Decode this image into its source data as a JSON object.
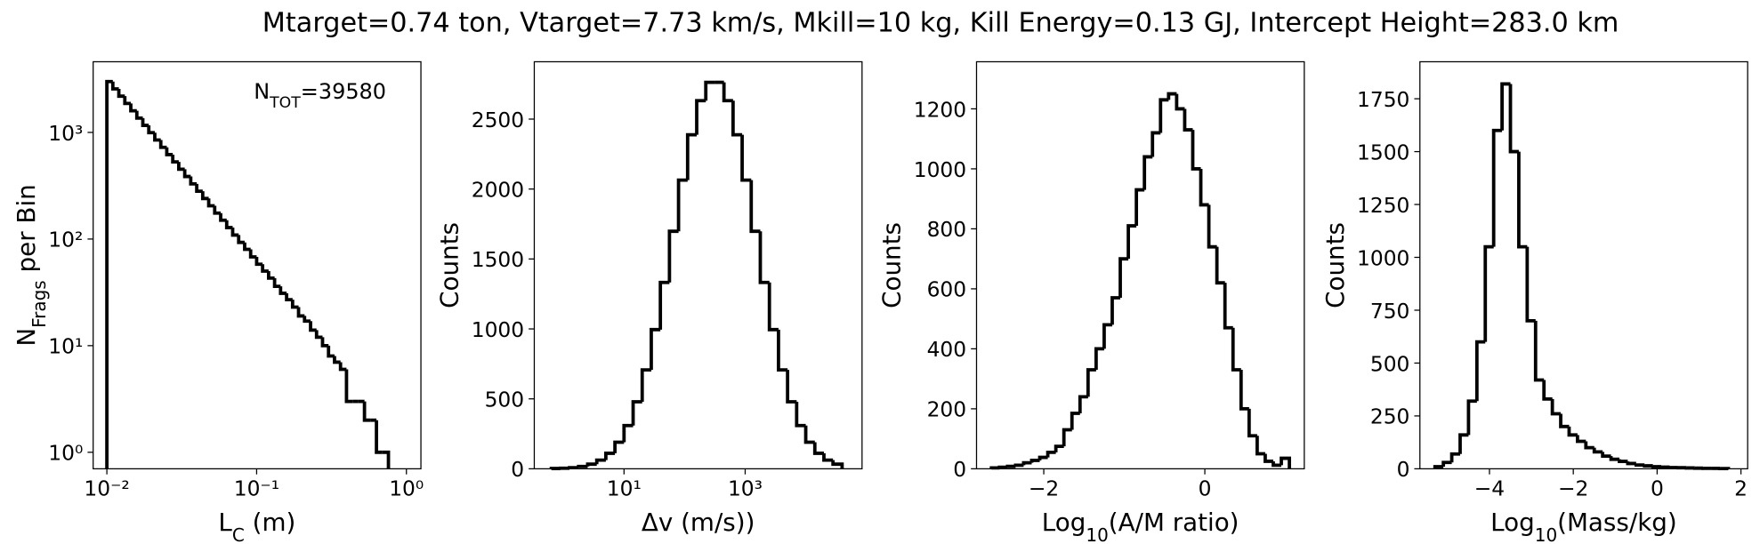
{
  "figure_title": "Mtarget=0.74 ton, Vtarget=7.73 km/s, Mkill=10 kg, Kill Energy=0.13 GJ, Intercept Height=283.0 km",
  "chart_data": [
    {
      "type": "histogram",
      "color": "#000000",
      "xscale": "log",
      "yscale": "log",
      "xlabel": [
        "L",
        "C",
        " (m)"
      ],
      "ylabel": [
        "N",
        "Frags",
        " per Bin"
      ],
      "annotation": [
        "N",
        "TOT",
        "=39580"
      ],
      "xlim": [
        0.0081,
        1.25
      ],
      "ylim": [
        0.7,
        4600
      ],
      "xticks": [
        {
          "value": 0.01,
          "label": "10⁻²"
        },
        {
          "value": 0.1,
          "label": "10⁻¹"
        },
        {
          "value": 1,
          "label": "10⁰"
        }
      ],
      "yticks": [
        {
          "value": 1,
          "label": "10⁰"
        },
        {
          "value": 10,
          "label": "10¹"
        },
        {
          "value": 100,
          "label": "10²"
        },
        {
          "value": 1000,
          "label": "10³"
        }
      ],
      "bins": [
        0.01,
        0.01096,
        0.01202,
        0.01318,
        0.01445,
        0.01585,
        0.01738,
        0.01905,
        0.02089,
        0.02291,
        0.02512,
        0.02754,
        0.0302,
        0.03311,
        0.03631,
        0.03981,
        0.04365,
        0.04786,
        0.05248,
        0.05754,
        0.0631,
        0.06918,
        0.07586,
        0.08318,
        0.0912,
        0.1,
        0.1096,
        0.1202,
        0.1318,
        0.1445,
        0.1585,
        0.1738,
        0.1905,
        0.2089,
        0.2291,
        0.2512,
        0.2754,
        0.302,
        0.3311,
        0.3631,
        0.3981,
        0.4365,
        0.4786,
        0.5248,
        0.5754,
        0.631,
        0.6918,
        0.7586
      ],
      "values": [
        3000,
        2562,
        2188,
        1869,
        1596,
        1363,
        1164,
        994,
        849,
        725,
        619,
        529,
        452,
        386,
        329,
        281,
        240,
        205,
        175,
        150,
        128,
        109,
        93,
        80,
        68,
        58,
        50,
        43,
        36,
        31,
        27,
        23,
        19,
        17,
        14,
        12,
        10,
        8,
        7,
        6,
        3,
        3,
        3,
        2,
        2,
        1,
        1
      ]
    },
    {
      "type": "histogram",
      "color": "#000000",
      "xscale": "log",
      "yscale": "linear",
      "xlabel": [
        "Δv (m/s))"
      ],
      "ylabel": [
        "Counts"
      ],
      "xlim": [
        0.33,
        85000
      ],
      "ylim": [
        0,
        2910
      ],
      "xticks": [
        {
          "value": 10,
          "label": "10¹"
        },
        {
          "value": 1000,
          "label": "10³"
        }
      ],
      "yticks": [
        0,
        500,
        1000,
        1500,
        2000,
        2500
      ],
      "bins": [
        0.631,
        0.8913,
        1.259,
        1.778,
        2.512,
        3.548,
        5.012,
        7.079,
        10,
        14.13,
        19.95,
        28.18,
        39.81,
        56.23,
        79.43,
        112.2,
        158.5,
        223.9,
        316.2,
        446.7,
        631,
        891.3,
        1259,
        1778,
        2512,
        3548,
        5012,
        7079,
        10000,
        14125,
        19953,
        28184,
        39811
      ],
      "values": [
        2,
        4,
        8,
        17,
        33,
        62,
        111,
        190,
        309,
        479,
        707,
        995,
        1332,
        1698,
        2064,
        2388,
        2632,
        2763,
        2763,
        2632,
        2388,
        2064,
        1698,
        1332,
        995,
        707,
        479,
        309,
        190,
        111,
        62,
        33
      ]
    },
    {
      "type": "histogram",
      "color": "#000000",
      "xscale": "linear",
      "yscale": "linear",
      "xlabel": [
        "Log",
        "10",
        "(A/M ratio)"
      ],
      "ylabel": [
        "Counts"
      ],
      "xlim": [
        -2.835,
        1.235
      ],
      "ylim": [
        0,
        1357
      ],
      "xticks": [
        {
          "value": -2,
          "label": "−2"
        },
        0
      ],
      "yticks": [
        0,
        200,
        400,
        600,
        800,
        1000,
        1200
      ],
      "bins": [
        -2.65,
        -2.55,
        -2.45,
        -2.35,
        -2.25,
        -2.15,
        -2.05,
        -1.95,
        -1.85,
        -1.75,
        -1.65,
        -1.55,
        -1.45,
        -1.35,
        -1.25,
        -1.15,
        -1.05,
        -0.95,
        -0.85,
        -0.75,
        -0.65,
        -0.55,
        -0.45,
        -0.35,
        -0.25,
        -0.15,
        -0.05,
        0.05,
        0.15,
        0.25,
        0.35,
        0.45,
        0.55,
        0.65,
        0.75,
        0.85,
        0.95,
        1.05
      ],
      "values": [
        3,
        5,
        8,
        12,
        20,
        28,
        38,
        55,
        75,
        130,
        185,
        240,
        330,
        400,
        480,
        570,
        700,
        810,
        930,
        1040,
        1120,
        1230,
        1250,
        1200,
        1130,
        1000,
        880,
        740,
        620,
        470,
        330,
        200,
        110,
        50,
        25,
        12,
        35
      ]
    },
    {
      "type": "histogram",
      "color": "#000000",
      "xscale": "linear",
      "yscale": "linear",
      "xlabel": [
        "Log",
        "10",
        "(Mass/kg)"
      ],
      "ylabel": [
        "Counts"
      ],
      "xlim": [
        -5.66,
        2.16
      ],
      "ylim": [
        0,
        1925
      ],
      "xticks": [
        {
          "value": -4,
          "label": "−4"
        },
        {
          "value": -2,
          "label": "−2"
        },
        0,
        2
      ],
      "yticks": [
        0,
        250,
        500,
        750,
        1000,
        1250,
        1500,
        1750
      ],
      "bins": [
        -5.3,
        -5.1,
        -4.9,
        -4.7,
        -4.5,
        -4.3,
        -4.1,
        -3.9,
        -3.7,
        -3.5,
        -3.3,
        -3.1,
        -2.9,
        -2.7,
        -2.5,
        -2.3,
        -2.1,
        -1.9,
        -1.7,
        -1.5,
        -1.3,
        -1.1,
        -0.9,
        -0.7,
        -0.5,
        -0.3,
        -0.1,
        0.1,
        0.3,
        0.5,
        0.7,
        0.9,
        1.1,
        1.3,
        1.5,
        1.7
      ],
      "values": [
        10,
        30,
        70,
        160,
        320,
        600,
        1050,
        1600,
        1820,
        1500,
        1050,
        700,
        420,
        330,
        260,
        200,
        160,
        130,
        100,
        80,
        60,
        45,
        35,
        25,
        18,
        14,
        10,
        8,
        6,
        5,
        4,
        3,
        2,
        2,
        1
      ]
    }
  ]
}
